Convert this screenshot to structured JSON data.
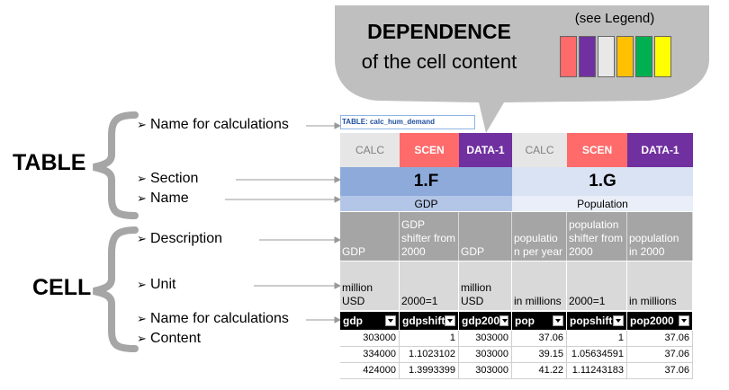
{
  "bubble": {
    "title": "DEPENDENCE",
    "subtitle": "of the cell content",
    "legend_note": "(see Legend)",
    "swatches": [
      "#ff6b6b",
      "#7030a0",
      "#e8e8e8",
      "#ffc000",
      "#00b050",
      "#ffff00"
    ]
  },
  "labels": {
    "table": "TABLE",
    "cell": "CELL"
  },
  "arrow_items": {
    "name_calc_table": "Name for calculations",
    "section": "Section",
    "name": "Name",
    "description": "Description",
    "unit": "Unit",
    "name_calc_cell": "Name for calculations",
    "content": "Content"
  },
  "table": {
    "title": "TABLE: calc_hum_demand",
    "headers": [
      {
        "label": "CALC",
        "bg": "#e6e6e6",
        "fg": "#808080"
      },
      {
        "label": "SCEN",
        "bg": "#ff6b6b",
        "fg": "#ffffff"
      },
      {
        "label": "DATA-1",
        "bg": "#7030a0",
        "fg": "#ffffff"
      },
      {
        "label": "CALC",
        "bg": "#e6e6e6",
        "fg": "#808080"
      },
      {
        "label": "SCEN",
        "bg": "#ff6b6b",
        "fg": "#ffffff"
      },
      {
        "label": "DATA-1",
        "bg": "#7030a0",
        "fg": "#ffffff"
      }
    ],
    "sections": [
      {
        "code": "1.F",
        "name": "GDP",
        "bg_code": "#8eaadb",
        "bg_name": "#b4c6e7"
      },
      {
        "code": "1.G",
        "name": "Population",
        "bg_code": "#dae3f3",
        "bg_name": "#e9eef8"
      }
    ],
    "descriptions": [
      "GDP",
      "GDP shifter from 2000",
      "GDP",
      "populatio n per year",
      "population shifter from 2000",
      "population in 2000"
    ],
    "units": [
      "million USD",
      "2000=1",
      "million USD",
      "in millions",
      "2000=1",
      "in millions"
    ],
    "names": [
      "gdp",
      "gdpshift",
      "gdp200",
      "pop",
      "popshift",
      "pop2000"
    ],
    "rows": [
      [
        "303000",
        "1",
        "303000",
        "37.06",
        "1",
        "37.06"
      ],
      [
        "334000",
        "1.1023102",
        "303000",
        "39.15",
        "1.05634591",
        "37.06"
      ],
      [
        "424000",
        "1.3993399",
        "303000",
        "41.22",
        "1.11243183",
        "37.06"
      ]
    ]
  }
}
